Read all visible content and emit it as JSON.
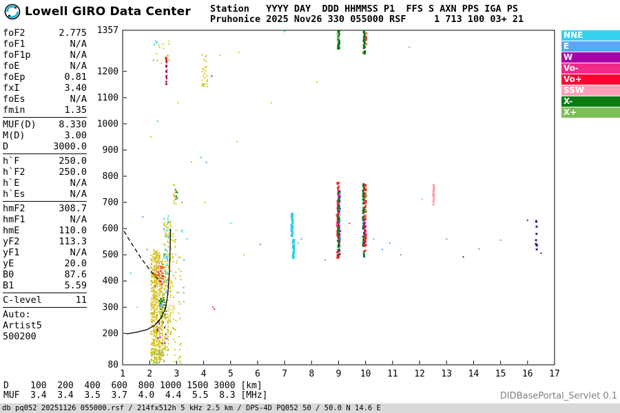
{
  "header": {
    "brand": "Lowell GIRO Data Center",
    "station_line1": "Station   YYYY DAY  DDD HHMMSS P1  FFS S AXN PPS IGA PS",
    "station_line2": "Pruhonice 2025 Nov26 330 055000 RSF     1 713 100 03+ 21"
  },
  "params": {
    "groups": [
      {
        "rows": [
          [
            "foF2",
            "2.775"
          ],
          [
            "foF1",
            "N/A"
          ],
          [
            "foF1p",
            "N/A"
          ],
          [
            "foE",
            "N/A"
          ],
          [
            "foEp",
            "0.81"
          ],
          [
            "fxI",
            "3.40"
          ],
          [
            "foEs",
            "N/A"
          ],
          [
            "fmin",
            "1.35"
          ]
        ]
      },
      {
        "rows": [
          [
            "MUF(D)",
            "8.330"
          ],
          [
            "M(D)",
            "3.00"
          ],
          [
            "D",
            "3000.0"
          ]
        ]
      },
      {
        "rows": [
          [
            "h`F",
            "250.0"
          ],
          [
            "h`F2",
            "250.0"
          ],
          [
            "h`E",
            "N/A"
          ],
          [
            "h`Es",
            "N/A"
          ]
        ]
      },
      {
        "rows": [
          [
            "hmF2",
            "308.7"
          ],
          [
            "hmF1",
            "N/A"
          ],
          [
            "hmE",
            "110.0"
          ],
          [
            "yF2",
            "113.3"
          ],
          [
            "yF1",
            "N/A"
          ],
          [
            "yE",
            "20.0"
          ],
          [
            "B0",
            "87.6"
          ],
          [
            "B1",
            "5.59"
          ]
        ]
      },
      {
        "rows": [
          [
            "C-level",
            "11"
          ]
        ]
      }
    ],
    "auto_block": [
      "Auto:",
      "Artist5",
      "500200"
    ]
  },
  "legend": [
    {
      "label": "NNE",
      "color": "#35d2ee"
    },
    {
      "label": "E",
      "color": "#5aa7f5"
    },
    {
      "label": "W",
      "color": "#a800a8"
    },
    {
      "label": "Vo-",
      "color": "#ef2b87"
    },
    {
      "label": "Vo+",
      "color": "#ff0033"
    },
    {
      "label": "SSW",
      "color": "#ff9fb6"
    },
    {
      "label": "X-",
      "color": "#0b7a14"
    },
    {
      "label": "X+",
      "color": "#7cbf56"
    }
  ],
  "chart_data": {
    "type": "scatter",
    "title": "Pruhonice ionogram 2025 Nov26 330 055000 RSF",
    "xlabel": "[MHz]",
    "ylabel": "[km]",
    "xlim": [
      1,
      17
    ],
    "ylim": [
      80,
      1357
    ],
    "x_ticks": [
      1,
      2,
      3,
      4,
      5,
      6,
      7,
      8,
      9,
      10,
      11,
      12,
      13,
      14,
      15,
      16,
      17
    ],
    "y_ticks": [
      80,
      200,
      300,
      400,
      500,
      600,
      700,
      800,
      900,
      1000,
      1100,
      1200,
      1357
    ],
    "palette": {
      "yellow": "#d2c31e",
      "cyan": "#2fd0e8",
      "blue": "#5aa7f5",
      "navy": "#2626aa",
      "magenta": "#a800a8",
      "pink": "#ef2b87",
      "red": "#ff2030",
      "darkred": "#b01040",
      "salmon": "#ff9fa8",
      "dkgreen": "#0b7a14",
      "green": "#7cbf56",
      "gray": "#909090"
    },
    "clusters": [
      {
        "f": 2.08,
        "df": 0.07,
        "h1": 90,
        "h2": 500,
        "c": "yellow",
        "n": 90,
        "s": 2
      },
      {
        "f": 2.17,
        "df": 0.07,
        "h1": 85,
        "h2": 520,
        "c": "yellow",
        "n": 150,
        "s": 2
      },
      {
        "f": 2.26,
        "df": 0.07,
        "h1": 85,
        "h2": 515,
        "c": "yellow",
        "n": 140,
        "s": 2
      },
      {
        "f": 2.36,
        "df": 0.07,
        "h1": 90,
        "h2": 510,
        "c": "yellow",
        "n": 130,
        "s": 2
      },
      {
        "f": 2.46,
        "df": 0.07,
        "h1": 95,
        "h2": 480,
        "c": "yellow",
        "n": 100,
        "s": 2
      },
      {
        "f": 2.57,
        "df": 0.08,
        "h1": 100,
        "h2": 630,
        "c": "yellow",
        "n": 85,
        "s": 2
      },
      {
        "f": 2.67,
        "df": 0.07,
        "h1": 110,
        "h2": 630,
        "c": "yellow",
        "n": 60,
        "s": 2
      },
      {
        "f": 2.77,
        "df": 0.06,
        "h1": 180,
        "h2": 640,
        "c": "yellow",
        "n": 45,
        "s": 2
      },
      {
        "f": 2.93,
        "df": 0.18,
        "h1": 85,
        "h2": 600,
        "c": "yellow",
        "n": 38,
        "s": 2
      },
      {
        "f": 3.12,
        "df": 0.1,
        "h1": 85,
        "h2": 540,
        "c": "yellow",
        "n": 20,
        "s": 2
      },
      {
        "f": 2.35,
        "df": 0.35,
        "h1": 380,
        "h2": 460,
        "c": "red",
        "n": 30,
        "s": 2
      },
      {
        "f": 2.5,
        "df": 0.3,
        "h1": 260,
        "h2": 335,
        "c": "dkgreen",
        "n": 22,
        "s": 2
      },
      {
        "f": 2.62,
        "df": 0.22,
        "h1": 420,
        "h2": 545,
        "c": "cyan",
        "n": 18,
        "s": 2
      },
      {
        "f": 2.35,
        "df": 0.4,
        "h1": 82,
        "h2": 140,
        "c": "green",
        "n": 18,
        "s": 2
      },
      {
        "f": 2.45,
        "df": 0.35,
        "h1": 150,
        "h2": 250,
        "c": "magenta",
        "n": 14,
        "s": 2
      },
      {
        "f": 2.52,
        "df": 0.3,
        "h1": 300,
        "h2": 400,
        "c": "blue",
        "n": 12,
        "s": 2
      },
      {
        "f": 2.25,
        "df": 0.2,
        "h1": 435,
        "h2": 470,
        "c": "salmon",
        "n": 8,
        "s": 2
      },
      {
        "f": 2.62,
        "df": 0.2,
        "h1": 555,
        "h2": 650,
        "c": "cyan",
        "n": 10,
        "s": 2
      },
      {
        "f": 2.62,
        "df": 0.03,
        "h1": 1148,
        "h2": 1258,
        "c": "darkred",
        "n": 34,
        "s": 2
      },
      {
        "f": 2.5,
        "df": 0.5,
        "h1": 1215,
        "h2": 1330,
        "c": "yellow",
        "n": 16,
        "s": 2
      },
      {
        "f": 2.2,
        "df": 0.2,
        "h1": 1240,
        "h2": 1320,
        "c": "cyan",
        "n": 5,
        "s": 2
      },
      {
        "f": 4.05,
        "df": 0.22,
        "h1": 1140,
        "h2": 1265,
        "c": "yellow",
        "n": 26,
        "s": 2
      },
      {
        "f": 2.95,
        "df": 0.13,
        "h1": 688,
        "h2": 775,
        "c": "yellow",
        "n": 14,
        "s": 2
      },
      {
        "f": 3.0,
        "df": 0.1,
        "h1": 700,
        "h2": 762,
        "c": "dkgreen",
        "n": 6,
        "s": 2
      },
      {
        "f": 3.3,
        "df": 0.25,
        "h1": 300,
        "h2": 620,
        "c": "cyan",
        "n": 7,
        "s": 2
      },
      {
        "f": 7.28,
        "df": 0.05,
        "h1": 568,
        "h2": 660,
        "c": "cyan",
        "n": 40,
        "s": 3
      },
      {
        "f": 7.33,
        "df": 0.05,
        "h1": 487,
        "h2": 562,
        "c": "cyan",
        "n": 32,
        "s": 3
      },
      {
        "f": 8.98,
        "df": 0.05,
        "h1": 487,
        "h2": 775,
        "c": "red",
        "n": 55,
        "s": 3
      },
      {
        "f": 9.03,
        "df": 0.05,
        "h1": 500,
        "h2": 768,
        "c": "magenta",
        "n": 30,
        "s": 3
      },
      {
        "f": 9.0,
        "df": 0.05,
        "h1": 492,
        "h2": 760,
        "c": "dkgreen",
        "n": 32,
        "s": 3
      },
      {
        "f": 9.06,
        "df": 0.04,
        "h1": 520,
        "h2": 740,
        "c": "blue",
        "n": 12,
        "s": 2
      },
      {
        "f": 8.94,
        "df": 0.04,
        "h1": 600,
        "h2": 724,
        "c": "pink",
        "n": 10,
        "s": 2
      },
      {
        "f": 9.0,
        "df": 0.05,
        "h1": 1282,
        "h2": 1356,
        "c": "dkgreen",
        "n": 28,
        "s": 3
      },
      {
        "f": 8.96,
        "df": 0.03,
        "h1": 1300,
        "h2": 1356,
        "c": "green",
        "n": 8,
        "s": 2
      },
      {
        "f": 9.93,
        "df": 0.05,
        "h1": 492,
        "h2": 780,
        "c": "dkgreen",
        "n": 48,
        "s": 3
      },
      {
        "f": 9.99,
        "df": 0.05,
        "h1": 500,
        "h2": 772,
        "c": "red",
        "n": 36,
        "s": 3
      },
      {
        "f": 9.96,
        "df": 0.04,
        "h1": 520,
        "h2": 700,
        "c": "magenta",
        "n": 16,
        "s": 2
      },
      {
        "f": 10.02,
        "df": 0.03,
        "h1": 600,
        "h2": 760,
        "c": "green",
        "n": 10,
        "s": 2
      },
      {
        "f": 9.95,
        "df": 0.05,
        "h1": 1266,
        "h2": 1356,
        "c": "dkgreen",
        "n": 30,
        "s": 3
      },
      {
        "f": 10.03,
        "df": 0.03,
        "h1": 1298,
        "h2": 1348,
        "c": "red",
        "n": 7,
        "s": 2
      },
      {
        "f": 12.52,
        "df": 0.03,
        "h1": 690,
        "h2": 768,
        "c": "salmon",
        "n": 20,
        "s": 3
      },
      {
        "f": 16.33,
        "df": 0.04,
        "h1": 500,
        "h2": 648,
        "c": "navy",
        "n": 9,
        "s": 3
      }
    ],
    "points": [
      [
        1.3,
        430,
        "cyan"
      ],
      [
        1.55,
        300,
        "yellow"
      ],
      [
        1.75,
        645,
        "blue"
      ],
      [
        1.9,
        520,
        "gray"
      ],
      [
        2.05,
        950,
        "yellow"
      ],
      [
        2.3,
        1010,
        "cyan"
      ],
      [
        3.05,
        1080,
        "yellow"
      ],
      [
        3.2,
        700,
        "green"
      ],
      [
        3.55,
        855,
        "yellow"
      ],
      [
        3.9,
        872,
        "cyan"
      ],
      [
        4.1,
        852,
        "blue"
      ],
      [
        4.35,
        300,
        "red"
      ],
      [
        4.4,
        292,
        "red"
      ],
      [
        4.3,
        1182,
        "magenta"
      ],
      [
        4.6,
        1262,
        "yellow"
      ],
      [
        4.05,
        700,
        "yellow"
      ],
      [
        5.3,
        1272,
        "yellow"
      ],
      [
        5.25,
        932,
        "yellow"
      ],
      [
        5.0,
        620,
        "cyan"
      ],
      [
        5.5,
        500,
        "yellow"
      ],
      [
        6.1,
        540,
        "gray"
      ],
      [
        6.5,
        1080,
        "yellow"
      ],
      [
        7.0,
        1352,
        "cyan"
      ],
      [
        7.5,
        545,
        "cyan"
      ],
      [
        7.62,
        560,
        "blue"
      ],
      [
        8.2,
        1160,
        "yellow"
      ],
      [
        8.5,
        480,
        "gray"
      ],
      [
        9.4,
        620,
        "red"
      ],
      [
        10.3,
        560,
        "cyan"
      ],
      [
        10.62,
        520,
        "blue"
      ],
      [
        10.9,
        545,
        "cyan"
      ],
      [
        11.3,
        500,
        "gray"
      ],
      [
        11.62,
        1292,
        "green"
      ],
      [
        12.1,
        712,
        "salmon"
      ],
      [
        13.0,
        560,
        "gray"
      ],
      [
        13.62,
        492,
        "navy"
      ],
      [
        14.2,
        522,
        "gray"
      ],
      [
        15.0,
        556,
        "gray"
      ],
      [
        16.0,
        632,
        "navy"
      ],
      [
        16.5,
        506,
        "navy"
      ]
    ],
    "profile": {
      "solid": [
        [
          1.15,
          198
        ],
        [
          1.5,
          204
        ],
        [
          1.9,
          214
        ],
        [
          2.2,
          232
        ],
        [
          2.45,
          262
        ],
        [
          2.6,
          300
        ],
        [
          2.68,
          355
        ],
        [
          2.73,
          430
        ],
        [
          2.755,
          510
        ],
        [
          2.77,
          600
        ]
      ],
      "dashed": [
        [
          1.05,
          590
        ],
        [
          1.35,
          540
        ],
        [
          1.7,
          485
        ],
        [
          2.0,
          443
        ],
        [
          2.35,
          402
        ]
      ]
    }
  },
  "footer": {
    "d_row": "D    100  200  400  600  800 1000 1500 3000 [km]",
    "muf_row": "MUF  3.4  3.4  3.5  3.7  4.0  4.4  5.5  8.3 [MHz]",
    "servlet": "DIDBasePortal_Servlet 0.1",
    "status": "db pq052 20251126 055000.rsf / 214fx512h 5 kHz 2.5 km / DPS-4D PQ052 50 / 50.0 N 14.6 E"
  }
}
